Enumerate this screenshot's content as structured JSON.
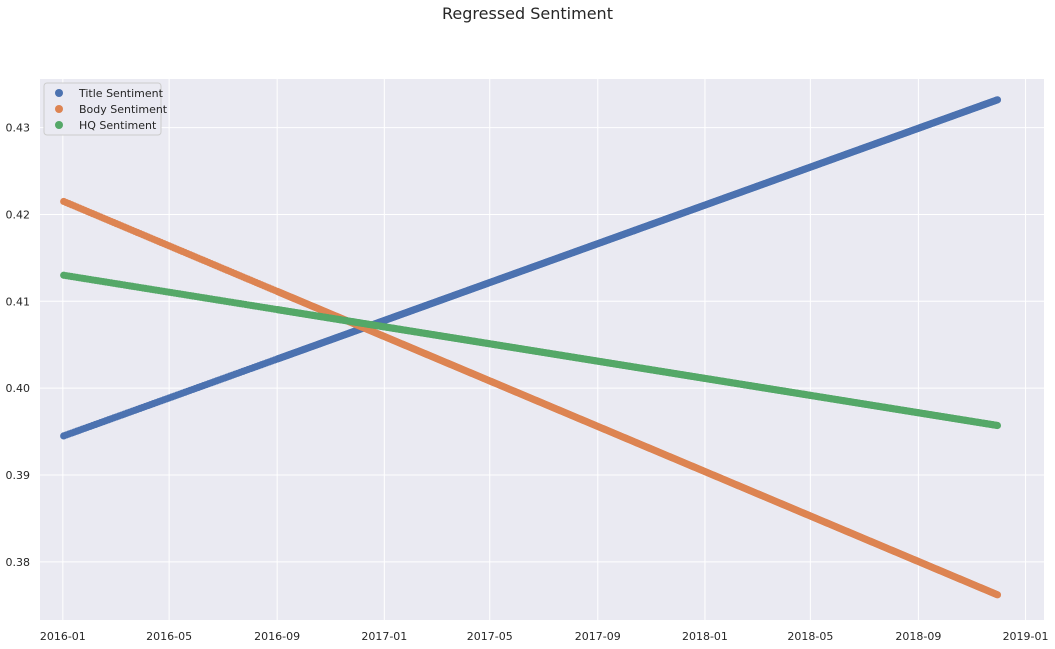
{
  "chart_data": {
    "type": "scatter",
    "title": "Regressed Sentiment",
    "xlabel": "",
    "ylabel": "",
    "x_axis": "date",
    "x_range": [
      "2015-12-06",
      "2019-01-22"
    ],
    "ylim": [
      0.3733,
      0.4356
    ],
    "x_ticks": [
      "2016-01",
      "2016-05",
      "2016-09",
      "2017-01",
      "2017-05",
      "2017-09",
      "2018-01",
      "2018-05",
      "2018-09",
      "2019-01"
    ],
    "y_ticks": [
      0.38,
      0.39,
      0.4,
      0.41,
      0.42,
      0.43
    ],
    "grid": true,
    "legend_position": "top-left",
    "background": "#eaeaf2",
    "x_start": "2016-01-02",
    "x_end": "2018-11-30",
    "series": [
      {
        "name": "Title Sentiment",
        "color": "#4c72b0",
        "start": 0.3945,
        "end": 0.4332
      },
      {
        "name": "Body Sentiment",
        "color": "#dd8452",
        "start": 0.4215,
        "end": 0.3762
      },
      {
        "name": "HQ Sentiment",
        "color": "#55a868",
        "start": 0.413,
        "end": 0.3957
      }
    ]
  }
}
